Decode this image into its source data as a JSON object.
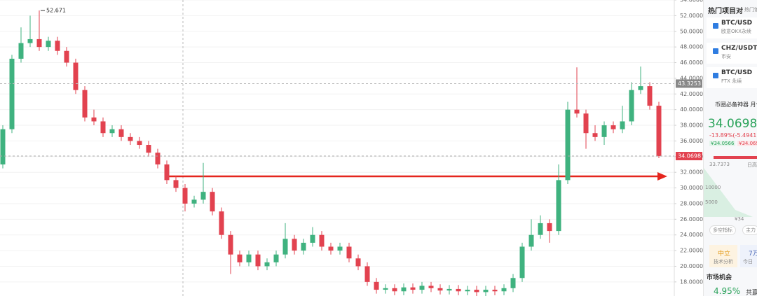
{
  "chart_data": {
    "type": "candlestick",
    "up_color": "#3fb27f",
    "down_color": "#e2424f",
    "open": [
      33,
      37.5,
      46.5,
      48.5,
      49,
      48,
      48.8,
      47.5,
      46,
      42.5,
      39,
      38.5,
      37,
      37.5,
      36.5,
      36,
      35.5,
      34.5,
      33,
      31,
      30,
      28,
      28.5,
      29.5,
      27,
      24,
      21.5,
      20.5,
      21.5,
      20,
      20.5,
      21.5,
      23.5,
      22,
      23,
      24,
      22.5,
      22,
      22.5,
      21,
      20,
      18,
      17,
      17.2,
      16.8,
      17.3,
      17,
      17.5,
      17.2,
      16.9,
      17.1,
      16.8,
      17,
      16.7,
      17,
      16.8,
      17.2,
      18.5,
      22.5,
      24,
      25.5,
      24.5,
      31,
      40,
      39.5,
      37,
      36.5,
      38,
      37.5,
      38.5,
      42.5,
      43,
      40.5
    ],
    "high": [
      38,
      47,
      50.5,
      52,
      52.671,
      49.3,
      49.3,
      48,
      46.5,
      43,
      40,
      39,
      38,
      38,
      37,
      36.5,
      36,
      35,
      33.5,
      31.5,
      30.5,
      29,
      33.2,
      30,
      27.5,
      24.5,
      22,
      22,
      22,
      21,
      22,
      25.5,
      24,
      23.5,
      25,
      24.5,
      23,
      23,
      23,
      21.5,
      20.5,
      18.5,
      17.7,
      17.7,
      17.8,
      17.8,
      18,
      18,
      17.7,
      17.6,
      17.6,
      17.5,
      17.5,
      17.5,
      17.5,
      17.7,
      19,
      23,
      26,
      26.5,
      26,
      33,
      41,
      45.4,
      40,
      38,
      38.5,
      38.5,
      40.5,
      43.5,
      45.5,
      43.5,
      41
    ],
    "low": [
      32.5,
      37,
      46,
      48,
      47.5,
      47.5,
      47,
      45.5,
      42,
      38.5,
      38,
      36.5,
      36.5,
      36,
      35.5,
      35,
      34,
      32.5,
      30.5,
      29.5,
      27,
      27.5,
      28,
      26.5,
      23.5,
      19,
      20,
      20,
      19.5,
      19.5,
      20,
      21,
      21.5,
      21.5,
      22.5,
      22,
      21.5,
      21.5,
      20.5,
      19.5,
      17.5,
      16.5,
      16.5,
      16.3,
      16.3,
      16.5,
      16.5,
      16.7,
      16.4,
      16.4,
      16.3,
      16.3,
      16.2,
      16.2,
      16.3,
      16.3,
      16.7,
      18,
      22,
      23.5,
      23,
      24,
      30.5,
      39,
      35,
      36,
      35.5,
      37,
      37,
      38,
      42,
      40,
      33.8
    ],
    "close": [
      37.5,
      46.5,
      48.5,
      49,
      48,
      48.8,
      47.5,
      46,
      42.5,
      39,
      38.5,
      37,
      37.5,
      36.5,
      36,
      35.5,
      34.5,
      33,
      31,
      30,
      28,
      28.5,
      29.5,
      27,
      24,
      21.5,
      20.5,
      21.5,
      20,
      20.5,
      21.5,
      23.5,
      22,
      23,
      24,
      22.5,
      22,
      22.5,
      21,
      20,
      18,
      17,
      17.2,
      16.8,
      17.3,
      17,
      17.5,
      17.2,
      16.9,
      17.1,
      16.8,
      17,
      16.7,
      17,
      16.8,
      17.2,
      18.5,
      22.5,
      24,
      25.5,
      24.5,
      31,
      40,
      39.5,
      37,
      36.5,
      38,
      37.5,
      38.5,
      42.5,
      43,
      40.5,
      34.0698
    ],
    "ylim": [
      16.2,
      54.0
    ],
    "yticks": [
      {
        "value": 18,
        "label": "18.0000"
      },
      {
        "value": 20,
        "label": "20.0000"
      },
      {
        "value": 22,
        "label": "22.0000"
      },
      {
        "value": 24,
        "label": "24.0000"
      },
      {
        "value": 26,
        "label": "26.0000"
      },
      {
        "value": 28,
        "label": "28.0000"
      },
      {
        "value": 30,
        "label": "30.0000"
      },
      {
        "value": 32,
        "label": "32.0000"
      },
      {
        "value": 34,
        "label": "34.0000"
      },
      {
        "value": 36,
        "label": "36.0000"
      },
      {
        "value": 38,
        "label": "38.0000"
      },
      {
        "value": 40,
        "label": "40.0000"
      },
      {
        "value": 42,
        "label": "42.0000"
      },
      {
        "value": 44,
        "label": "44.0000"
      },
      {
        "value": 46,
        "label": "46.0000"
      },
      {
        "value": 48,
        "label": "48.0000"
      },
      {
        "value": 50,
        "label": "50.0000"
      },
      {
        "value": 52,
        "label": "52.0000"
      },
      {
        "value": 54,
        "label": "54.0000"
      }
    ],
    "crosshair_value": 43.3253,
    "grid": true
  },
  "sidebar": {
    "tabs": [
      "热门项目对",
      "热门馆"
    ],
    "pairs": [
      {
        "name": "BTC/USD",
        "exchange": "欧意OKX永续"
      },
      {
        "name": "CHZ/USDT",
        "exchange": "币安"
      },
      {
        "name": "BTC/USD",
        "exchange": "FTX 永续"
      }
    ],
    "banner": "币圈必备神器 月化",
    "change": "-13.89%(-5.4941)",
    "bid": "¥34.0566",
    "ask": "¥34.069",
    "low": "33.7373",
    "high_label": "日高",
    "depth_labels": [
      "10000",
      "5000",
      "¥34"
    ],
    "buttons": [
      "多空指标",
      "主力"
    ],
    "stats": [
      {
        "value": "中立",
        "label": "技术分析"
      },
      {
        "value": "7万",
        "label": "今日"
      }
    ],
    "section": "市场机会",
    "opportunity": "4.95%",
    "opportunity_tag": "共赢"
  }
}
